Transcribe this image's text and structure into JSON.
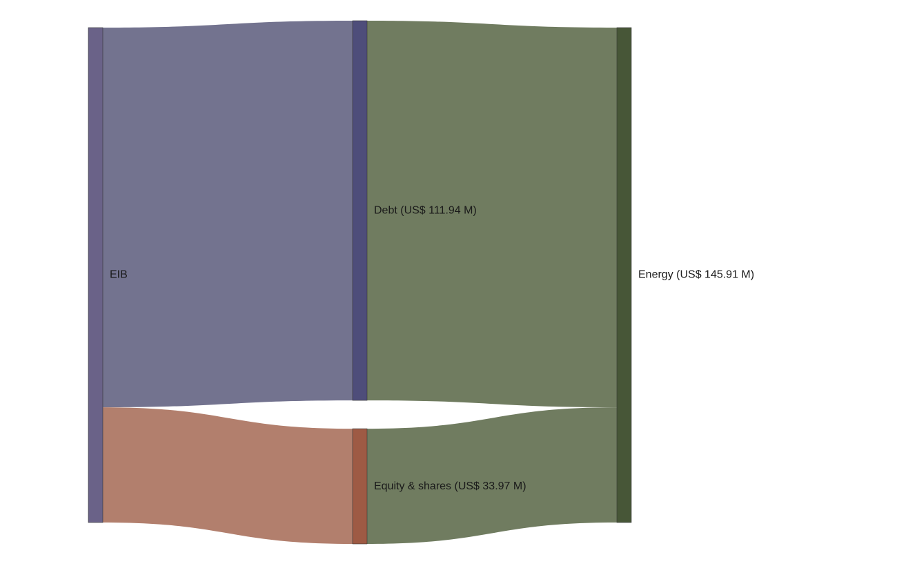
{
  "chart_data": {
    "type": "sankey",
    "nodes": [
      {
        "id": "eib",
        "label": "EIB",
        "color": "#6a6288"
      },
      {
        "id": "debt",
        "label": "Debt (US$ 111.94 M)",
        "color": "#4e4d7a"
      },
      {
        "id": "equity",
        "label": "Equity & shares (US$ 33.97 M)",
        "color": "#9e5a44"
      },
      {
        "id": "energy",
        "label": "Energy (US$ 145.91 M)",
        "color": "#475637"
      }
    ],
    "links": [
      {
        "source": "eib",
        "target": "debt",
        "value": 111.94,
        "color": "#73738f"
      },
      {
        "source": "eib",
        "target": "equity",
        "value": 33.97,
        "color": "#b27f6d"
      },
      {
        "source": "debt",
        "target": "energy",
        "value": 111.94,
        "color": "#707c60"
      },
      {
        "source": "equity",
        "target": "energy",
        "value": 33.97,
        "color": "#707c60"
      }
    ]
  }
}
